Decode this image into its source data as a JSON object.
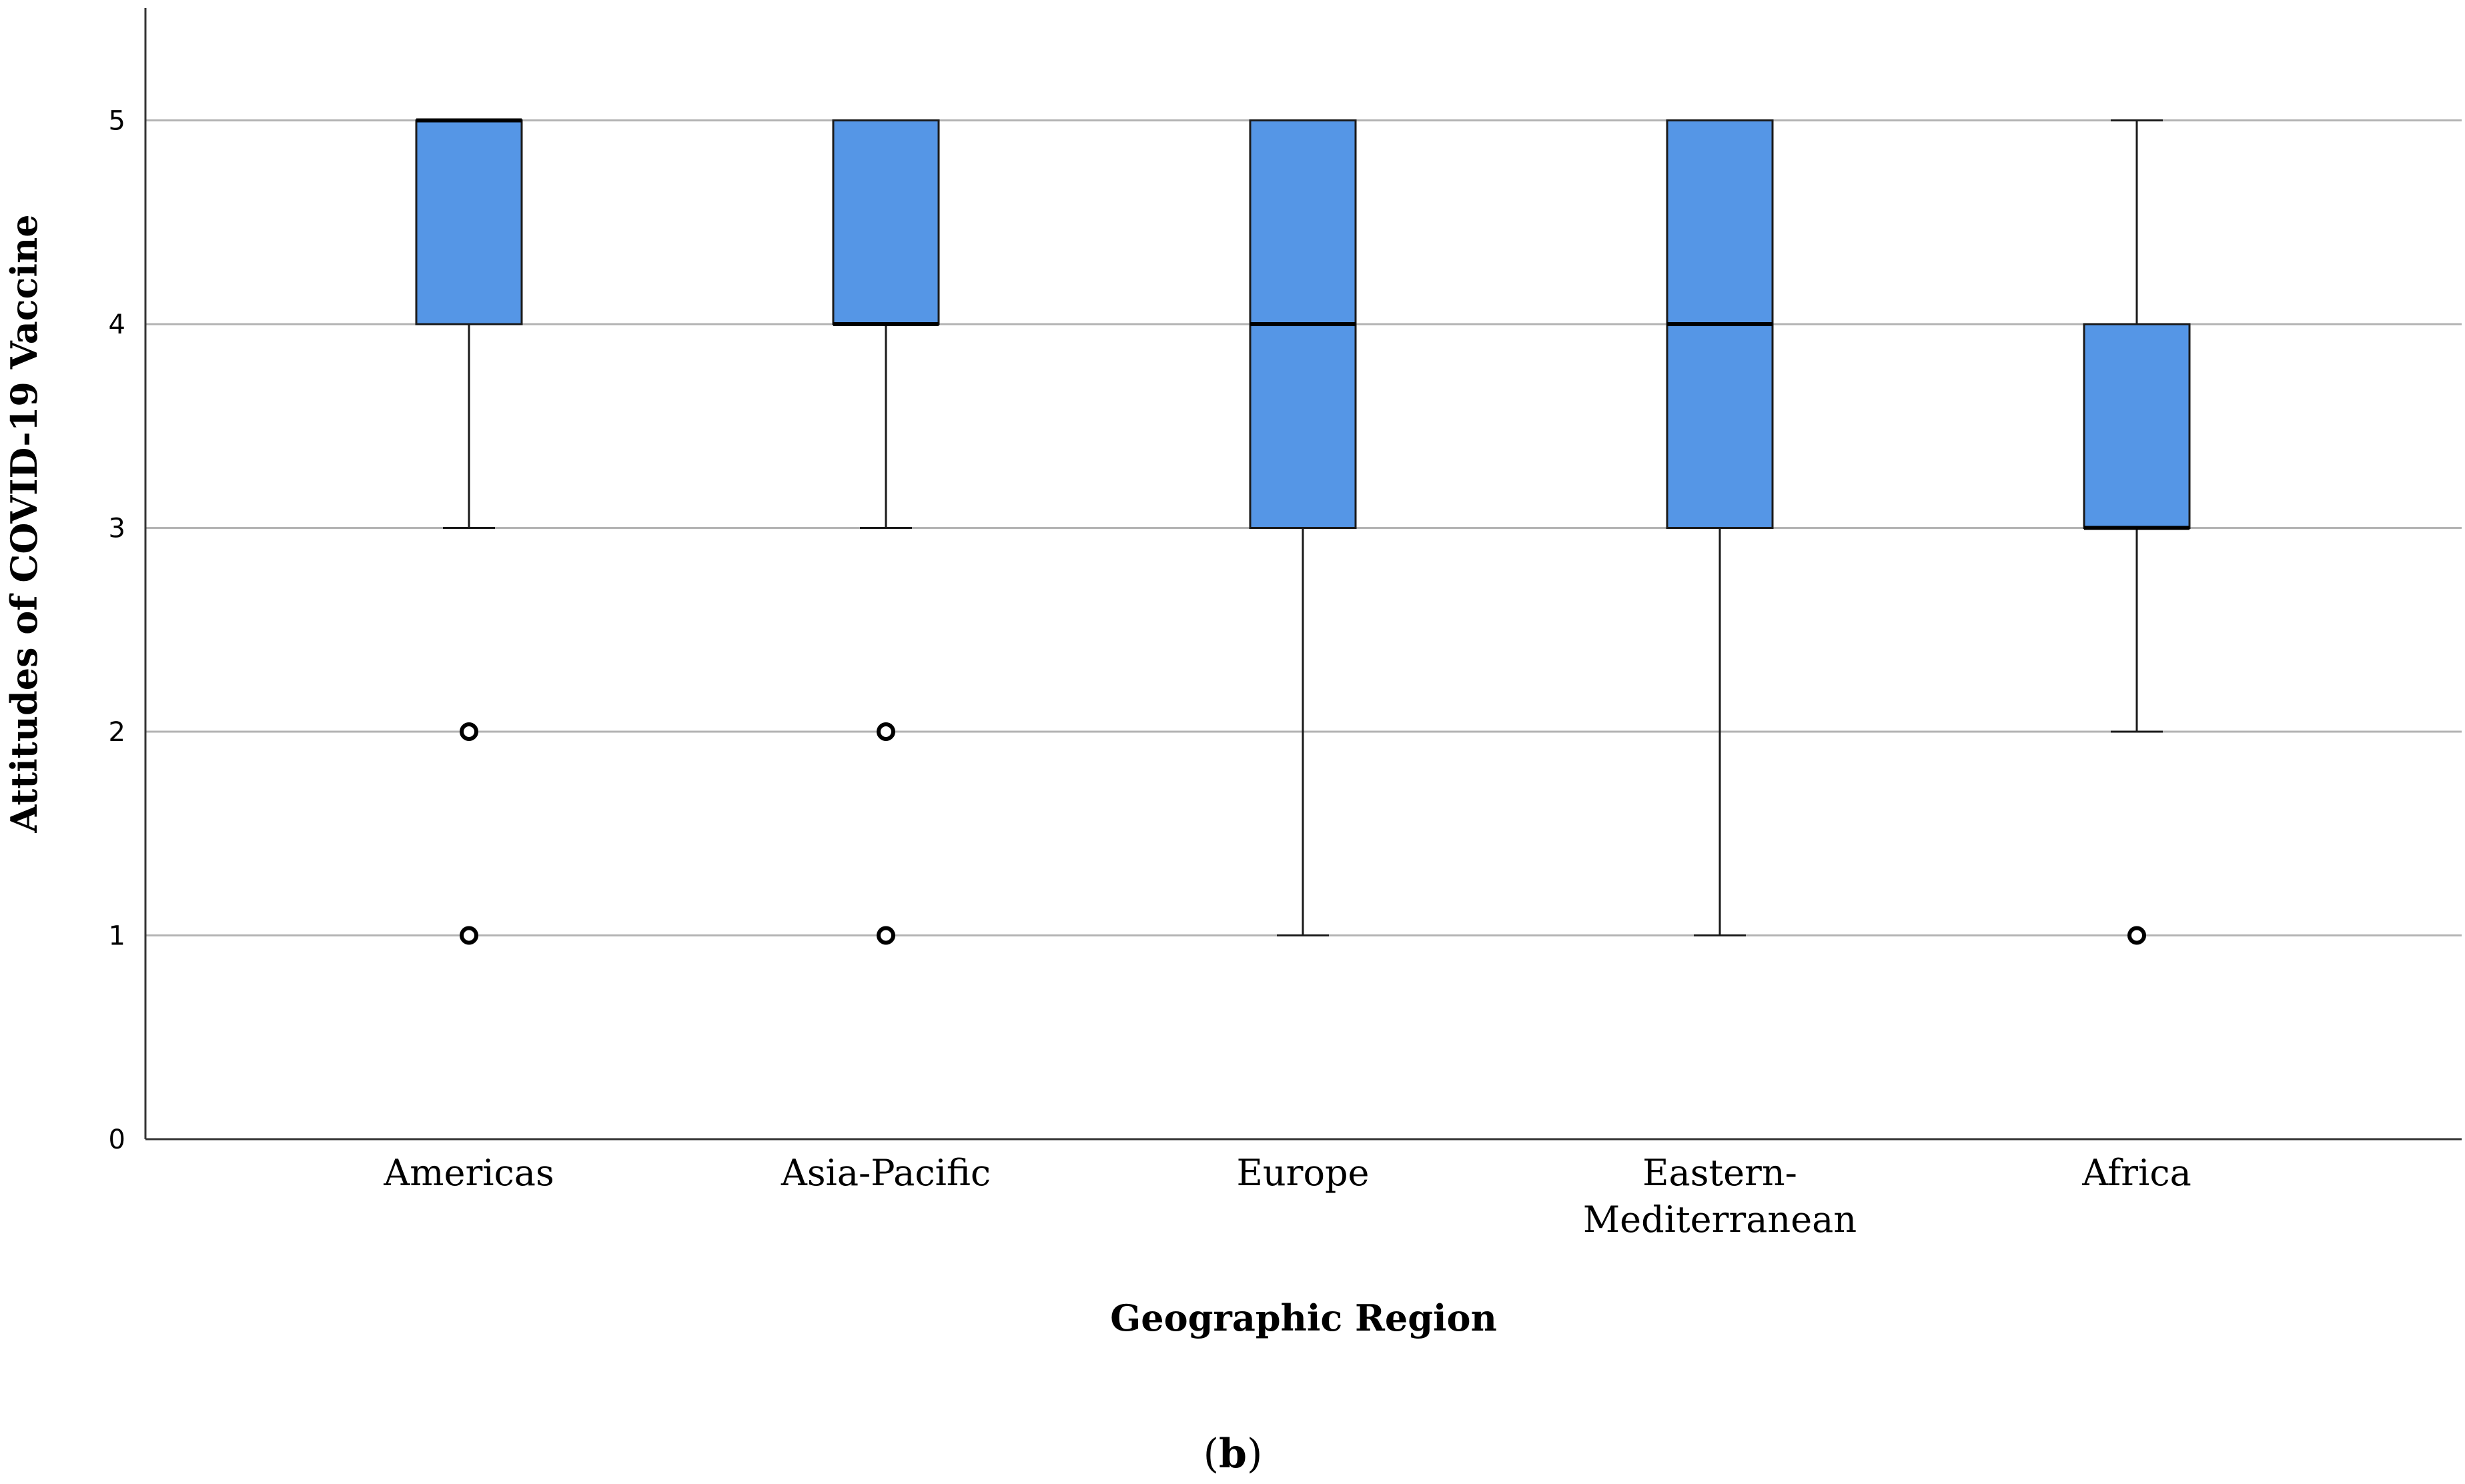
{
  "chart_data": {
    "type": "box",
    "xlabel": "Geographic Region",
    "ylabel": "Attitudes of COVID-19 Vaccine",
    "ylim": [
      0,
      5.5
    ],
    "yticks": [
      0,
      1,
      2,
      3,
      4,
      5
    ],
    "grid": "horizontal",
    "categories": [
      [
        "Americas"
      ],
      [
        "Asia-Pacific"
      ],
      [
        "Europe"
      ],
      [
        "Eastern-",
        "Mediterranean"
      ]
    ],
    "last_category": [
      "Africa"
    ],
    "boxes": [
      {
        "category": "Americas",
        "whisker_low": 3,
        "q1": 4,
        "median": 5,
        "q3": 5,
        "whisker_high": 5,
        "outliers": [
          2,
          1
        ]
      },
      {
        "category": "Asia-Pacific",
        "whisker_low": 3,
        "q1": 4,
        "median": 4,
        "q3": 5,
        "whisker_high": 5,
        "outliers": [
          2,
          1
        ]
      },
      {
        "category": "Europe",
        "whisker_low": 1,
        "q1": 3,
        "median": 4,
        "q3": 5,
        "whisker_high": 5,
        "outliers": []
      },
      {
        "category": "Eastern-Mediterranean",
        "whisker_low": 1,
        "q1": 3,
        "median": 4,
        "q3": 5,
        "whisker_high": 5,
        "outliers": []
      },
      {
        "category": "Africa",
        "whisker_low": 2,
        "q1": 3,
        "median": 3,
        "q3": 4,
        "whisker_high": 5,
        "outliers": [
          1
        ]
      }
    ],
    "colors": {
      "box_fill": "#5596E6",
      "box_stroke": "#1a1a1a",
      "grid": "#b3b3b3",
      "axis": "#333333"
    }
  },
  "panel_label": {
    "open": "(",
    "letter": "b",
    "close": ")"
  }
}
